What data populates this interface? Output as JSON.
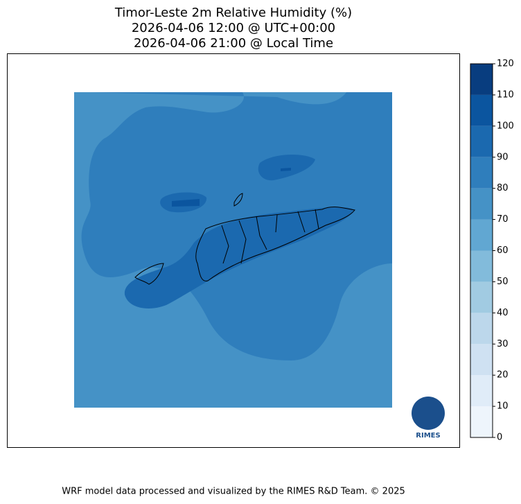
{
  "title": [
    "Timor-Leste 2m Relative Humidity (%)",
    "2026-04-06 12:00 @ UTC+00:00",
    "2026-04-06 21:00 @ Local Time"
  ],
  "colorbar": {
    "ticks": [
      0,
      10,
      20,
      30,
      40,
      50,
      60,
      70,
      80,
      90,
      100,
      110,
      120
    ],
    "colors": [
      "#eef5fc",
      "#e0ecf8",
      "#cfe1f2",
      "#bcd7eb",
      "#a1cbe2",
      "#82bbdb",
      "#61a7d2",
      "#4592c6",
      "#2f7ebc",
      "#1b69af",
      "#0b559f",
      "#083d7f"
    ]
  },
  "logo": "RIMES",
  "footer": "WRF model data processed and visualized by the RIMES R&D Team. © 2025"
}
